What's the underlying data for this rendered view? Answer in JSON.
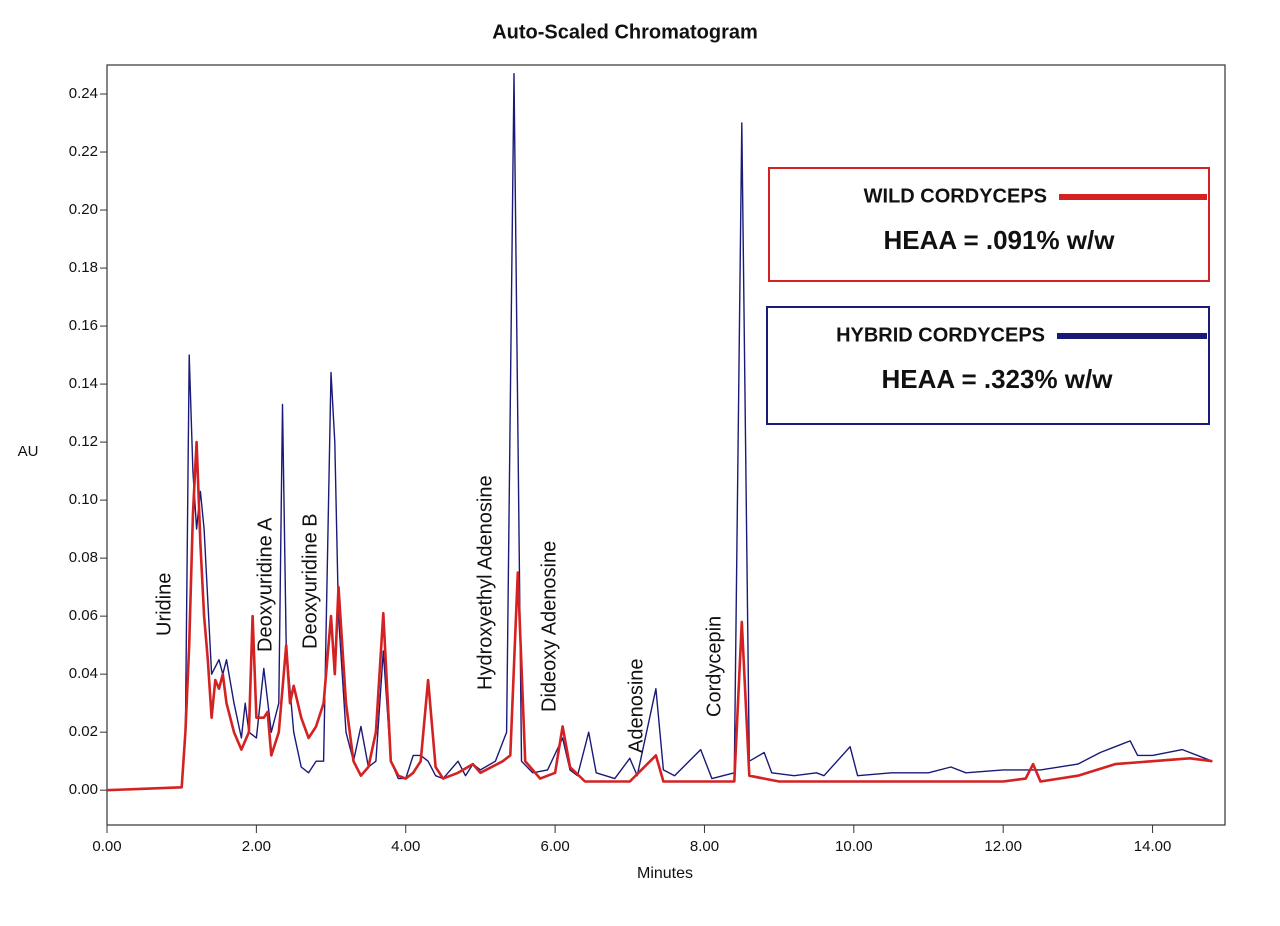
{
  "chart_data": {
    "type": "line",
    "title": "Auto-Scaled Chromatogram",
    "xlabel": "Minutes",
    "ylabel": "AU",
    "xlim": [
      0,
      14.97
    ],
    "ylim": [
      -0.012,
      0.25
    ],
    "xticks": [
      {
        "value": 0,
        "label": "0.00"
      },
      {
        "value": 2,
        "label": "2.00"
      },
      {
        "value": 4,
        "label": "4.00"
      },
      {
        "value": 6,
        "label": "6.00"
      },
      {
        "value": 8,
        "label": "8.00"
      },
      {
        "value": 10,
        "label": "10.00"
      },
      {
        "value": 12,
        "label": "12.00"
      },
      {
        "value": 14,
        "label": "14.00"
      }
    ],
    "yticks": [
      {
        "value": 0,
        "label": "0.00"
      },
      0.02,
      0.04,
      0.06,
      0.08,
      {
        "value": 0.1,
        "label": "0.10"
      },
      0.12,
      0.14,
      0.16,
      0.18,
      {
        "value": 0.2,
        "label": "0.20"
      },
      0.22,
      0.24
    ],
    "annotations": [
      "Uridine",
      "Deoxyuridine A",
      "Deoxyuridine B",
      "Hydroxyethyl Adenosine",
      "Dideoxy Adenosine",
      "Adenosine",
      "Cordycepin"
    ],
    "legend_notes": [
      "HEAA = .091% w/w",
      "HEAA = .323% w/w"
    ],
    "series": [
      {
        "name": "WILD CORDYCEPS",
        "color": "#d42222",
        "x": [
          0,
          1.0,
          1.05,
          1.1,
          1.15,
          1.2,
          1.25,
          1.3,
          1.35,
          1.4,
          1.45,
          1.5,
          1.55,
          1.6,
          1.7,
          1.8,
          1.9,
          1.95,
          2.0,
          2.1,
          2.15,
          2.2,
          2.3,
          2.4,
          2.45,
          2.5,
          2.6,
          2.7,
          2.8,
          2.9,
          3.0,
          3.05,
          3.1,
          3.2,
          3.3,
          3.4,
          3.5,
          3.6,
          3.7,
          3.8,
          3.9,
          4.0,
          4.1,
          4.2,
          4.3,
          4.4,
          4.5,
          4.7,
          4.9,
          5.0,
          5.3,
          5.4,
          5.5,
          5.6,
          5.8,
          6.0,
          6.1,
          6.2,
          6.4,
          7.0,
          7.35,
          7.45,
          8.0,
          8.4,
          8.5,
          8.6,
          9.0,
          10.0,
          11.0,
          12.0,
          12.3,
          12.4,
          12.5,
          13.0,
          13.5,
          14.0,
          14.5,
          14.8
        ],
        "values": [
          0,
          0.001,
          0.02,
          0.05,
          0.095,
          0.12,
          0.085,
          0.06,
          0.045,
          0.025,
          0.038,
          0.035,
          0.04,
          0.03,
          0.02,
          0.014,
          0.02,
          0.06,
          0.025,
          0.025,
          0.027,
          0.012,
          0.02,
          0.05,
          0.03,
          0.036,
          0.025,
          0.018,
          0.022,
          0.03,
          0.06,
          0.04,
          0.07,
          0.03,
          0.01,
          0.005,
          0.008,
          0.02,
          0.061,
          0.01,
          0.005,
          0.004,
          0.006,
          0.01,
          0.038,
          0.008,
          0.004,
          0.006,
          0.009,
          0.006,
          0.01,
          0.012,
          0.075,
          0.01,
          0.004,
          0.006,
          0.022,
          0.008,
          0.003,
          0.003,
          0.012,
          0.003,
          0.003,
          0.003,
          0.058,
          0.005,
          0.003,
          0.003,
          0.003,
          0.003,
          0.004,
          0.009,
          0.003,
          0.005,
          0.009,
          0.01,
          0.011,
          0.01
        ]
      },
      {
        "name": "HYBRID CORDYCEPS",
        "color": "#1a1a78",
        "x": [
          0,
          1.0,
          1.05,
          1.1,
          1.15,
          1.2,
          1.25,
          1.3,
          1.4,
          1.5,
          1.55,
          1.6,
          1.7,
          1.8,
          1.85,
          1.9,
          2.0,
          2.1,
          2.2,
          2.3,
          2.35,
          2.4,
          2.5,
          2.6,
          2.7,
          2.8,
          2.9,
          3.0,
          3.05,
          3.1,
          3.2,
          3.3,
          3.4,
          3.5,
          3.6,
          3.7,
          3.8,
          3.9,
          4.0,
          4.1,
          4.2,
          4.3,
          4.4,
          4.5,
          4.7,
          4.8,
          4.9,
          5.0,
          5.2,
          5.35,
          5.45,
          5.55,
          5.7,
          5.9,
          6.1,
          6.2,
          6.3,
          6.45,
          6.55,
          6.8,
          7.0,
          7.1,
          7.35,
          7.45,
          7.6,
          7.95,
          8.1,
          8.4,
          8.5,
          8.6,
          8.8,
          8.9,
          9.2,
          9.5,
          9.6,
          9.95,
          10.05,
          10.5,
          11.0,
          11.3,
          11.5,
          12.0,
          12.5,
          13.0,
          13.3,
          13.5,
          13.7,
          13.8,
          14.0,
          14.4,
          14.8
        ],
        "values": [
          0,
          0.001,
          0.02,
          0.15,
          0.11,
          0.09,
          0.103,
          0.09,
          0.04,
          0.045,
          0.04,
          0.045,
          0.03,
          0.018,
          0.03,
          0.02,
          0.018,
          0.042,
          0.02,
          0.03,
          0.133,
          0.05,
          0.02,
          0.008,
          0.006,
          0.01,
          0.01,
          0.144,
          0.12,
          0.06,
          0.02,
          0.01,
          0.022,
          0.008,
          0.01,
          0.048,
          0.01,
          0.004,
          0.004,
          0.012,
          0.012,
          0.01,
          0.005,
          0.004,
          0.01,
          0.005,
          0.009,
          0.007,
          0.01,
          0.02,
          0.247,
          0.01,
          0.006,
          0.007,
          0.018,
          0.007,
          0.005,
          0.02,
          0.006,
          0.004,
          0.011,
          0.005,
          0.035,
          0.007,
          0.005,
          0.014,
          0.004,
          0.006,
          0.23,
          0.01,
          0.013,
          0.006,
          0.005,
          0.006,
          0.005,
          0.015,
          0.005,
          0.006,
          0.006,
          0.008,
          0.006,
          0.007,
          0.007,
          0.009,
          0.013,
          0.015,
          0.017,
          0.012,
          0.012,
          0.014,
          0.01
        ]
      }
    ]
  }
}
